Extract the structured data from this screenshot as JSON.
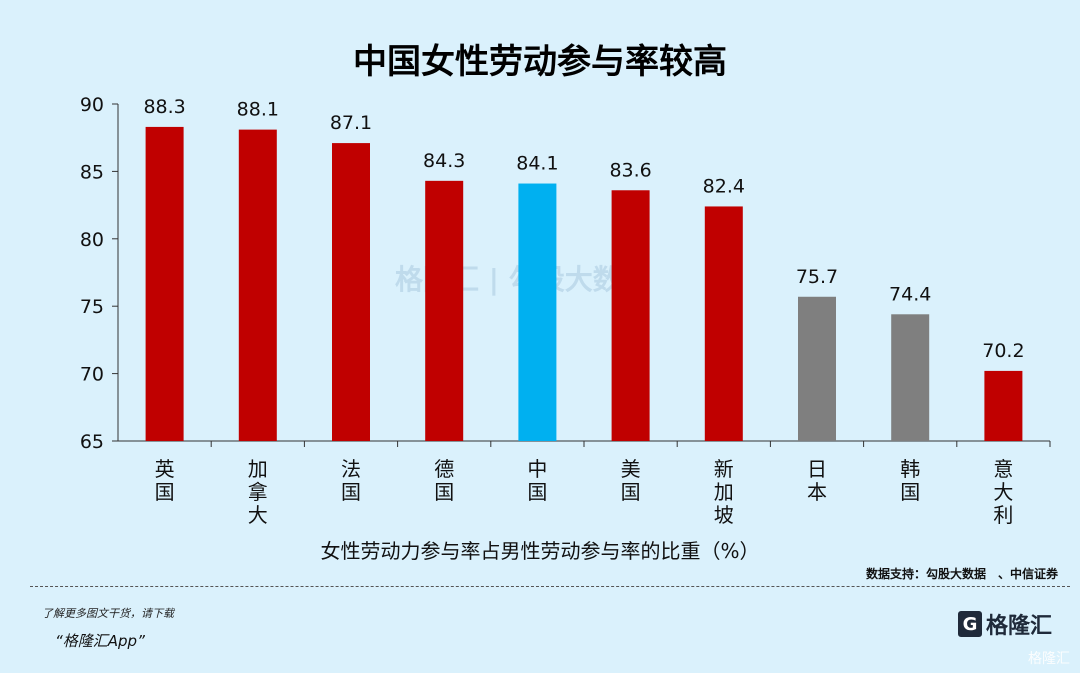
{
  "chart_data": {
    "type": "bar",
    "title": "中国女性劳动参与率较高",
    "xlabel": "女性劳动力参与率占男性劳动参与率的比重（%）",
    "ylabel": "",
    "categories": [
      "英国",
      "加拿大",
      "法国",
      "德国",
      "中国",
      "美国",
      "新加坡",
      "日本",
      "韩国",
      "意大利"
    ],
    "values": [
      88.3,
      88.1,
      87.1,
      84.3,
      84.1,
      83.6,
      82.4,
      75.7,
      74.4,
      70.2
    ],
    "bar_colors": [
      "#c00000",
      "#c00000",
      "#c00000",
      "#c00000",
      "#00b0f0",
      "#c00000",
      "#c00000",
      "#7f7f7f",
      "#7f7f7f",
      "#c00000"
    ],
    "ylim": [
      65,
      90
    ],
    "yticks": [
      65,
      70,
      75,
      80,
      85,
      90
    ],
    "grid": false
  },
  "source": "数据支持：勾股大数据　、中信证券",
  "footer": {
    "promo_line1": "了解更多图文干货，请下载",
    "promo_line2": "“格隆汇App”",
    "logo_text": "格隆汇",
    "watermark": "格隆汇",
    "center_watermark": "格隆汇 | 勾股大数据"
  }
}
